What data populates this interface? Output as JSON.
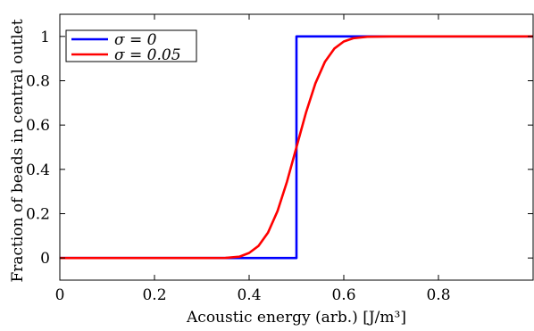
{
  "chart_data": {
    "type": "line",
    "xlabel": "Acoustic energy (arb.) [J/m³]",
    "ylabel": "Fraction of beads in central outlet",
    "xlim": [
      0,
      1
    ],
    "ylim": [
      -0.1,
      1.1
    ],
    "xticks": [
      0,
      0.2,
      0.4,
      0.6,
      0.8
    ],
    "xtick_labels": [
      "0",
      "0.2",
      "0.4",
      "0.6",
      "0.8"
    ],
    "yticks": [
      0,
      0.2,
      0.4,
      0.6,
      0.8,
      1
    ],
    "ytick_labels": [
      "0",
      "0.2",
      "0.4",
      "0.6",
      "0.8",
      "1"
    ],
    "grid": false,
    "legend_position": "top-left",
    "series": [
      {
        "name": "σ = 0",
        "color": "#0000ff",
        "x": [
          0,
          0.5,
          0.5,
          1
        ],
        "y": [
          0,
          0,
          1,
          1
        ]
      },
      {
        "name": "σ = 0.05",
        "color": "#ff0000",
        "x": [
          0,
          0.3,
          0.35,
          0.38,
          0.4,
          0.42,
          0.44,
          0.46,
          0.48,
          0.5,
          0.52,
          0.54,
          0.56,
          0.58,
          0.6,
          0.62,
          0.65,
          0.7,
          1
        ],
        "y": [
          0,
          0,
          0.0003,
          0.0062,
          0.0228,
          0.0548,
          0.1151,
          0.2119,
          0.3446,
          0.5,
          0.6554,
          0.7881,
          0.8849,
          0.9452,
          0.9772,
          0.9918,
          0.9987,
          1,
          1
        ]
      }
    ]
  }
}
